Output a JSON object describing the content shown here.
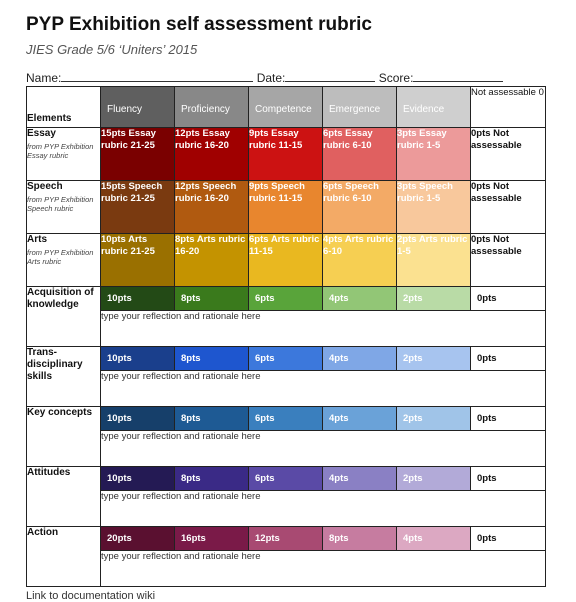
{
  "title": "PYP Exhibition self assessment rubric",
  "subtitle": "JIES Grade 5/6 ‘Uniters’ 2015",
  "fields": {
    "name": "Name:",
    "date": "Date:",
    "score": "Score:"
  },
  "header": {
    "elements": "Elements",
    "levels": [
      "Fluency",
      "Proficiency",
      "Competence",
      "Emergence",
      "Evidence"
    ],
    "not_assessable": "Not assessable 0"
  },
  "colors": {
    "header": [
      "#5f5f5f",
      "#888888",
      "#a6a6a6",
      "#bdbdbd",
      "#cfcfcf"
    ],
    "essay": [
      "#7a0000",
      "#a00000",
      "#cc1212",
      "#e06060",
      "#ec9a9a"
    ],
    "speech": [
      "#7a3a10",
      "#b05a10",
      "#e8862e",
      "#f3aa66",
      "#f8c89c"
    ],
    "arts": [
      "#9a7000",
      "#c49300",
      "#e9b820",
      "#f6cf52",
      "#fbe190"
    ],
    "knowledge": [
      "#234a16",
      "#3a7a1c",
      "#59a43a",
      "#92c676",
      "#b9dba6"
    ],
    "trans": [
      "#1a3f8c",
      "#1e56cf",
      "#3c78dc",
      "#7fa7e6",
      "#a7c4ef"
    ],
    "concepts": [
      "#163f6a",
      "#1e5a94",
      "#3a7fbe",
      "#6aa2d8",
      "#a0c4e8"
    ],
    "attitudes": [
      "#241a54",
      "#3a2a86",
      "#5a4aa6",
      "#8a80c4",
      "#b2aad8"
    ],
    "action": [
      "#5a1030",
      "#7a1a48",
      "#a84a72",
      "#c67ca0",
      "#dca8c2"
    ]
  },
  "rows": {
    "essay": {
      "label": "Essay",
      "source": "from PYP Exhibition Essay rubric",
      "cells": [
        "15pts Essay rubric 21-25",
        "12pts Essay rubric 16-20",
        "9pts Essay rubric 11-15",
        "6pts Essay rubric 6-10",
        "3pts Essay rubric 1-5"
      ],
      "na": "0pts Not assessable"
    },
    "speech": {
      "label": "Speech",
      "source": "from PYP Exhibition Speech rubric",
      "cells": [
        "15pts Speech rubric 21-25",
        "12pts Speech rubric 16-20",
        "9pts Speech rubric 11-15",
        "6pts Speech rubric 6-10",
        "3pts Speech rubric 1-5"
      ],
      "na": "0pts Not assessable"
    },
    "arts": {
      "label": "Arts",
      "source": "from PYP Exhibition Arts rubric",
      "cells": [
        "10pts Arts rubric 21-25",
        "8pts Arts rubric 16-20",
        "6pts Arts rubric 11-15",
        "4pts Arts rubric 6-10",
        "2pts Arts rubric 1-5"
      ],
      "na": "0pts Not assessable"
    },
    "knowledge": {
      "label": "Acquisition of knowledge",
      "cells": [
        "10pts",
        "8pts",
        "6pts",
        "4pts",
        "2pts"
      ],
      "na": "0pts",
      "reflection": "type your reflection and rationale here"
    },
    "trans": {
      "label": "Trans-disciplinary skills",
      "cells": [
        "10pts",
        "8pts",
        "6pts",
        "4pts",
        "2pts"
      ],
      "na": "0pts",
      "reflection": "type your reflection and rationale here"
    },
    "concepts": {
      "label": "Key concepts",
      "cells": [
        "10pts",
        "8pts",
        "6pts",
        "4pts",
        "2pts"
      ],
      "na": "0pts",
      "reflection": "type your reflection and rationale here"
    },
    "attitudes": {
      "label": "Attitudes",
      "cells": [
        "10pts",
        "8pts",
        "6pts",
        "4pts",
        "2pts"
      ],
      "na": "0pts",
      "reflection": "type your reflection and rationale here"
    },
    "action": {
      "label": "Action",
      "cells": [
        "20pts",
        "16pts",
        "12pts",
        "8pts",
        "4pts"
      ],
      "na": "0pts",
      "reflection": "type your reflection and rationale here"
    }
  },
  "footer_link": "Link to documentation wiki"
}
